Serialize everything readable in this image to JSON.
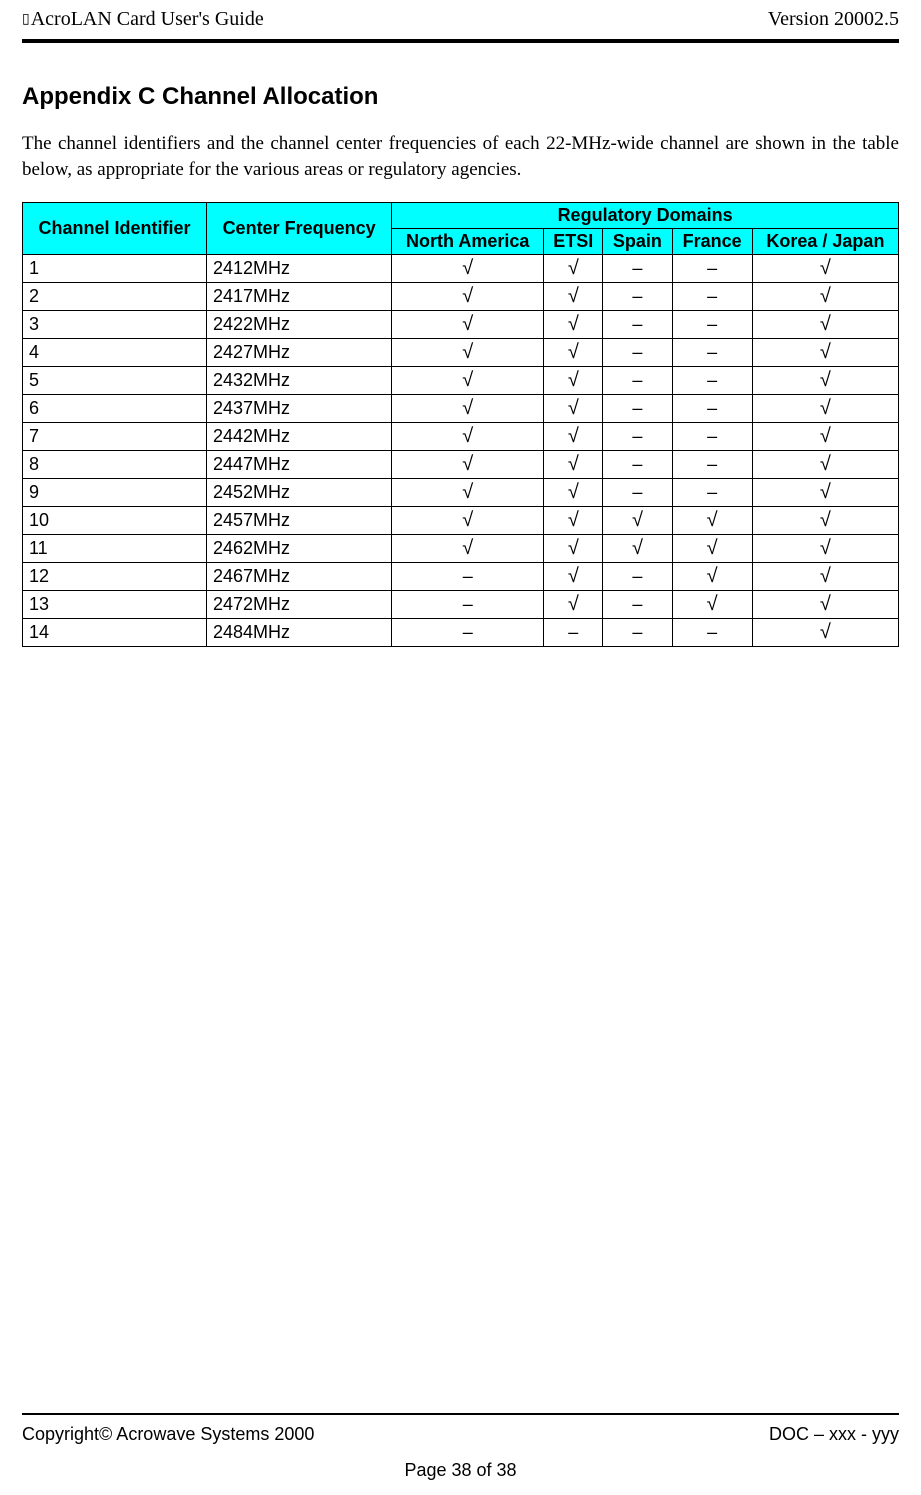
{
  "header": {
    "left": "AcroLAN Card User's Guide",
    "right": "Version 20002.5"
  },
  "title": "Appendix C   Channel Allocation",
  "intro": "The channel identifiers and the channel center frequencies of each 22-MHz-wide channel are shown in the table below, as appropriate for the various areas or regulatory agencies.",
  "table": {
    "type": "table",
    "header_bg": "#00ffff",
    "border_color": "#000000",
    "check_glyph": "√",
    "dash_glyph": "–",
    "col_headers": {
      "channel_id": "Channel Identifier",
      "center_freq": "Center Frequency",
      "reg_domains": "Regulatory Domains",
      "domains": [
        "North America",
        "ETSI",
        "Spain",
        "France",
        "Korea / Japan"
      ]
    },
    "rows": [
      {
        "id": "1",
        "freq": "2412MHz",
        "cells": [
          "c",
          "c",
          "d",
          "d",
          "c"
        ]
      },
      {
        "id": "2",
        "freq": "2417MHz",
        "cells": [
          "c",
          "c",
          "d",
          "d",
          "c"
        ]
      },
      {
        "id": "3",
        "freq": "2422MHz",
        "cells": [
          "c",
          "c",
          "d",
          "d",
          "c"
        ]
      },
      {
        "id": "4",
        "freq": "2427MHz",
        "cells": [
          "c",
          "c",
          "d",
          "d",
          "c"
        ]
      },
      {
        "id": "5",
        "freq": "2432MHz",
        "cells": [
          "c",
          "c",
          "d",
          "d",
          "c"
        ]
      },
      {
        "id": "6",
        "freq": "2437MHz",
        "cells": [
          "c",
          "c",
          "d",
          "d",
          "c"
        ]
      },
      {
        "id": "7",
        "freq": "2442MHz",
        "cells": [
          "c",
          "c",
          "d",
          "d",
          "c"
        ]
      },
      {
        "id": "8",
        "freq": "2447MHz",
        "cells": [
          "c",
          "c",
          "d",
          "d",
          "c"
        ]
      },
      {
        "id": "9",
        "freq": "2452MHz",
        "cells": [
          "c",
          "c",
          "d",
          "d",
          "c"
        ]
      },
      {
        "id": "10",
        "freq": "2457MHz",
        "cells": [
          "c",
          "c",
          "c",
          "c",
          "c"
        ]
      },
      {
        "id": "11",
        "freq": "2462MHz",
        "cells": [
          "c",
          "c",
          "c",
          "c",
          "c"
        ]
      },
      {
        "id": "12",
        "freq": "2467MHz",
        "cells": [
          "d",
          "c",
          "d",
          "c",
          "c"
        ]
      },
      {
        "id": "13",
        "freq": "2472MHz",
        "cells": [
          "d",
          "c",
          "d",
          "c",
          "c"
        ]
      },
      {
        "id": "14",
        "freq": "2484MHz",
        "cells": [
          "d",
          "d",
          "d",
          "d",
          "c"
        ]
      }
    ]
  },
  "footer": {
    "left": "Copyright© Acrowave Systems 2000",
    "right": "DOC – xxx - yyy",
    "page": "Page 38 of 38"
  }
}
